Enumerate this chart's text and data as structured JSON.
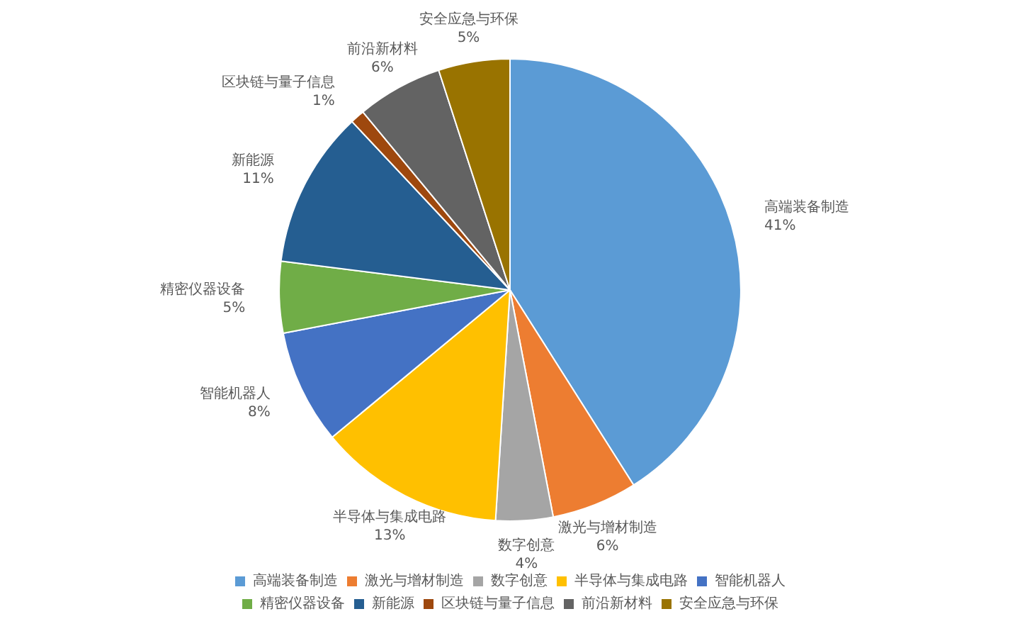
{
  "chart_data": {
    "type": "pie",
    "categories": [
      "高端装备制造",
      "激光与增材制造",
      "数字创意",
      "半导体与集成电路",
      "智能机器人",
      "精密仪器设备",
      "新能源",
      "区块链与量子信息",
      "前沿新材料",
      "安全应急与环保"
    ],
    "values": [
      41,
      6,
      4,
      13,
      8,
      5,
      11,
      1,
      6,
      5
    ],
    "value_labels": [
      "41%",
      "6%",
      "4%",
      "13%",
      "8%",
      "5%",
      "11%",
      "1%",
      "6%",
      "5%"
    ],
    "colors": [
      "#5b9bd5",
      "#ed7d31",
      "#a5a5a5",
      "#ffc000",
      "#4472c4",
      "#70ad47",
      "#255e91",
      "#9e480e",
      "#636363",
      "#997300"
    ],
    "legend": "bottom"
  }
}
